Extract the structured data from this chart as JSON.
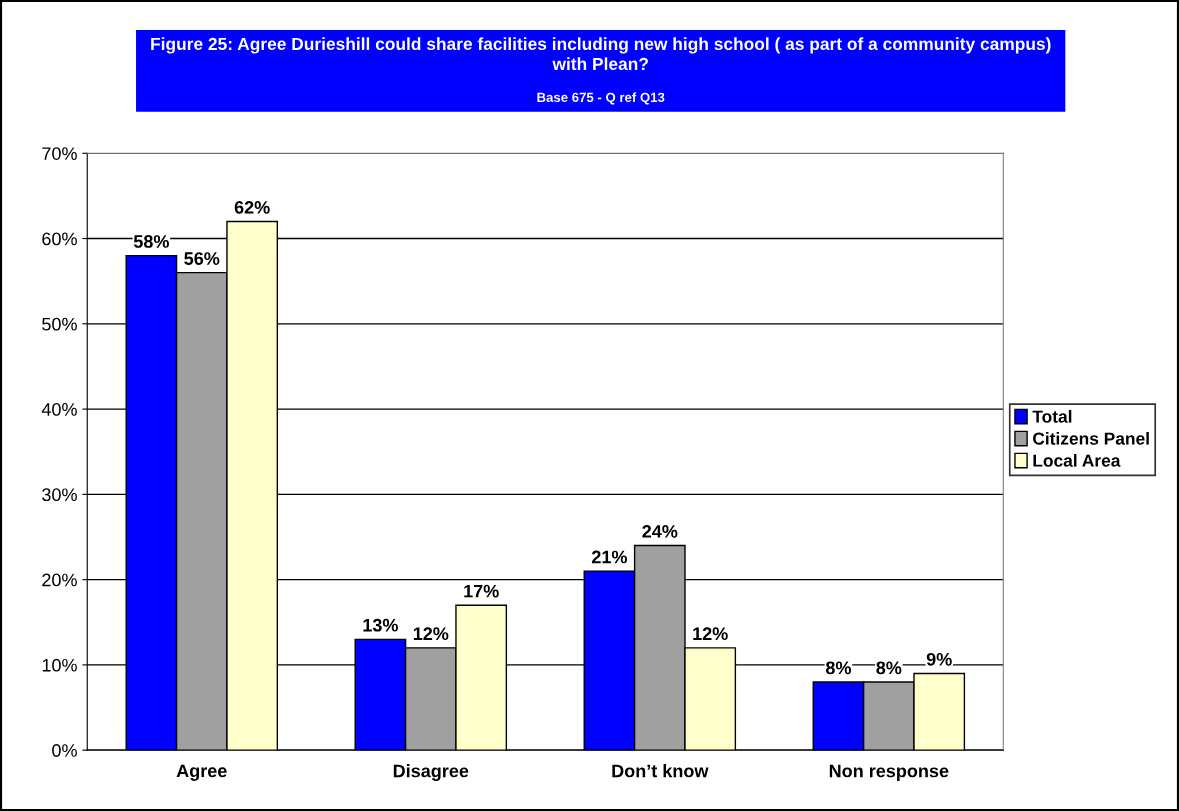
{
  "chart_data": {
    "type": "bar",
    "title": "Figure 25: Agree Durieshill could share facilities including new high school ( as part of a community campus) with Plean?",
    "subtitle": "Base 675 - Q ref Q13",
    "categories": [
      "Agree",
      "Disagree",
      "Don’t know",
      "Non response"
    ],
    "series": [
      {
        "name": "Total",
        "color": "#0000ff",
        "values": [
          58,
          13,
          21,
          8
        ],
        "value_labels": [
          "58%",
          "13%",
          "21%",
          "8%"
        ]
      },
      {
        "name": "Citizens Panel",
        "color": "#a0a0a0",
        "values": [
          56,
          12,
          24,
          8
        ],
        "value_labels": [
          "56%",
          "12%",
          "24%",
          "8%"
        ]
      },
      {
        "name": "Local Area",
        "color": "#ffffcc",
        "values": [
          62,
          17,
          12,
          9
        ],
        "value_labels": [
          "62%",
          "17%",
          "12%",
          "9%"
        ]
      }
    ],
    "ylim": [
      0,
      70
    ],
    "yticks": [
      {
        "value": 0,
        "label": "0%"
      },
      {
        "value": 10,
        "label": "10%"
      },
      {
        "value": 20,
        "label": "20%"
      },
      {
        "value": 30,
        "label": "30%"
      },
      {
        "value": 40,
        "label": "40%"
      },
      {
        "value": 50,
        "label": "50%"
      },
      {
        "value": 60,
        "label": "60%"
      },
      {
        "value": 70,
        "label": "70%"
      }
    ],
    "grid": "y",
    "legend": "right"
  }
}
